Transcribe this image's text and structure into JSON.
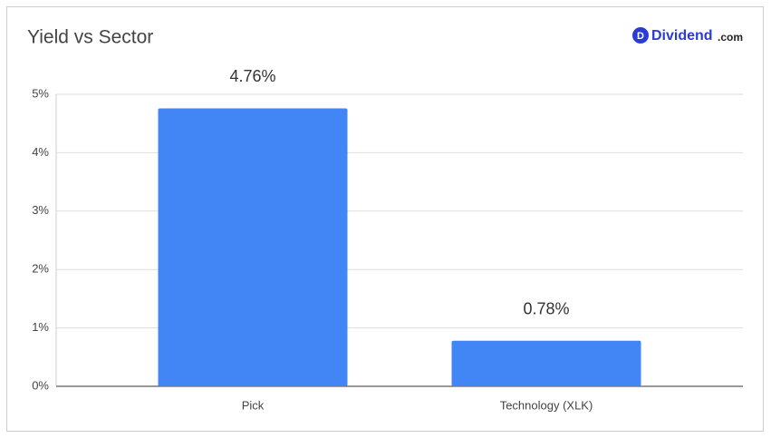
{
  "chart_data": {
    "type": "bar",
    "title": "Yield vs Sector",
    "categories": [
      "Pick",
      "Technology (XLK)"
    ],
    "values": [
      4.76,
      0.78
    ],
    "value_labels": [
      "4.76%",
      "0.78%"
    ],
    "color": "#4285f4",
    "ylim": [
      0,
      5
    ],
    "yticks": [
      {
        "value": 0,
        "label": "0%"
      },
      {
        "value": 1,
        "label": "1%"
      },
      {
        "value": 2,
        "label": "2%"
      },
      {
        "value": 3,
        "label": "3%"
      },
      {
        "value": 4,
        "label": "4%"
      },
      {
        "value": 5,
        "label": "5%"
      }
    ],
    "grid": true
  },
  "logo": {
    "icon": "D",
    "name": "Dividend",
    "suffix": ".com"
  }
}
